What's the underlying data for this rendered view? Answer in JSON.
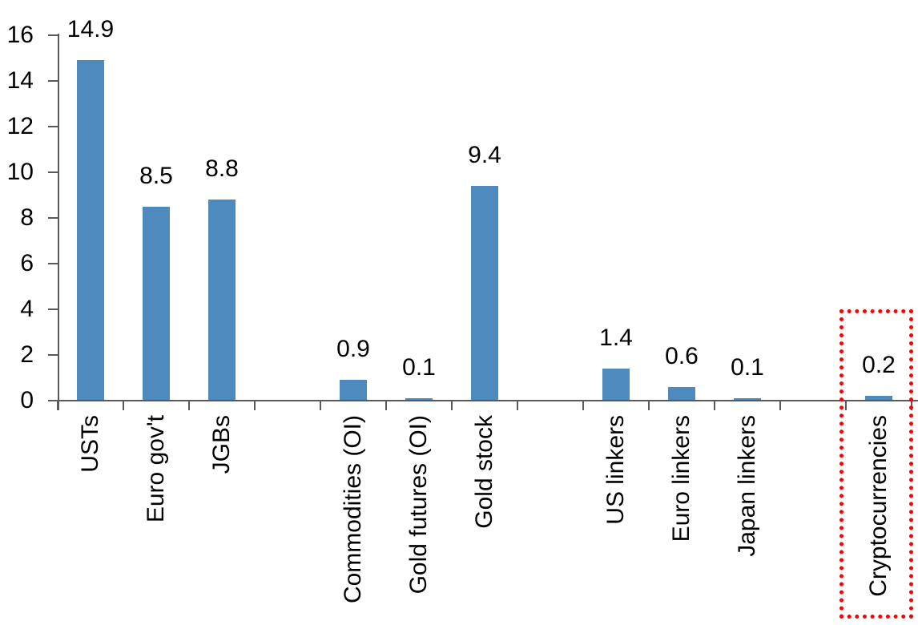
{
  "chart_data": {
    "type": "bar",
    "title": "",
    "xlabel": "",
    "ylabel": "",
    "categories": [
      "USTs",
      "Euro gov't",
      "JGBs",
      "",
      "Commodities (OI)",
      "Gold futures (OI)",
      "Gold stock",
      "",
      "US linkers",
      "Euro linkers",
      "Japan linkers",
      "",
      "Cryptocurrencies"
    ],
    "values": [
      14.9,
      8.5,
      8.8,
      null,
      0.9,
      0.1,
      9.4,
      null,
      1.4,
      0.6,
      0.1,
      null,
      0.2
    ],
    "value_labels": [
      "14.9",
      "8.5",
      "8.8",
      null,
      "0.9",
      "0.1",
      "9.4",
      null,
      "1.4",
      "0.6",
      "0.1",
      null,
      "0.2"
    ],
    "ylim": [
      0,
      16
    ],
    "yticks": [
      0,
      2,
      4,
      6,
      8,
      10,
      12,
      14,
      16
    ],
    "grid": false,
    "legend": false,
    "bar_color": "#4E8ABE",
    "axis_color": "#595959",
    "text_color": "#000000",
    "highlight_box": {
      "target": "Cryptocurrencies",
      "color": "#FF0000",
      "style": "dotted"
    }
  }
}
